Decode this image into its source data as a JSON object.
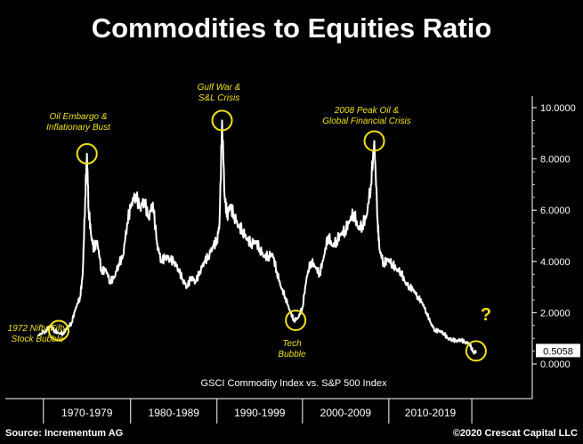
{
  "header": {
    "title": "Commodities to Equities Ratio"
  },
  "footer": {
    "source": "Source: Incrementum AG",
    "credit": "©2020 Crescat Capital LLC"
  },
  "colors": {
    "background": "#000000",
    "line": "#ffffff",
    "annotation": "#f2e21a"
  },
  "chart_data": {
    "type": "line",
    "title": "Commodities to Equities Ratio",
    "subtitle": "GSCI Commodity Index vs. S&P 500 Index",
    "y_ticks": [
      "10.0000",
      "8.0000",
      "6.0000",
      "4.0000",
      "2.0000",
      "0.0000"
    ],
    "ylim": [
      0,
      10
    ],
    "x_categories": [
      "1970-1979",
      "1980-1989",
      "1990-1999",
      "2000-2009",
      "2010-2019"
    ],
    "xlim": [
      1969,
      2020
    ],
    "current_value_label": "0.5058",
    "series": [
      {
        "values": [
          [
            1969.0,
            1.1
          ],
          [
            1970.0,
            1.3
          ],
          [
            1970.5,
            1.5
          ],
          [
            1971.0,
            1.3
          ],
          [
            1971.5,
            1.2
          ],
          [
            1972.0,
            1.2
          ],
          [
            1972.5,
            1.4
          ],
          [
            1973.0,
            1.6
          ],
          [
            1973.5,
            2.2
          ],
          [
            1974.0,
            2.6
          ],
          [
            1974.3,
            3.5
          ],
          [
            1974.6,
            6.5
          ],
          [
            1974.8,
            8.2
          ],
          [
            1975.0,
            6.0
          ],
          [
            1975.3,
            5.0
          ],
          [
            1975.6,
            4.5
          ],
          [
            1976.0,
            4.8
          ],
          [
            1976.5,
            3.6
          ],
          [
            1977.0,
            3.7
          ],
          [
            1977.5,
            3.2
          ],
          [
            1978.0,
            3.4
          ],
          [
            1978.5,
            3.9
          ],
          [
            1979.0,
            4.2
          ],
          [
            1979.5,
            5.5
          ],
          [
            1980.0,
            6.3
          ],
          [
            1980.5,
            6.6
          ],
          [
            1981.0,
            6.1
          ],
          [
            1981.5,
            6.4
          ],
          [
            1982.0,
            5.7
          ],
          [
            1982.5,
            6.3
          ],
          [
            1983.0,
            4.7
          ],
          [
            1983.5,
            4.0
          ],
          [
            1984.0,
            4.2
          ],
          [
            1984.5,
            4.1
          ],
          [
            1985.0,
            4.0
          ],
          [
            1985.5,
            3.7
          ],
          [
            1986.0,
            3.3
          ],
          [
            1986.5,
            3.0
          ],
          [
            1987.0,
            3.4
          ],
          [
            1987.5,
            3.2
          ],
          [
            1988.0,
            3.6
          ],
          [
            1988.5,
            4.0
          ],
          [
            1989.0,
            4.2
          ],
          [
            1989.5,
            4.6
          ],
          [
            1990.0,
            4.8
          ],
          [
            1990.3,
            5.5
          ],
          [
            1990.6,
            9.5
          ],
          [
            1990.9,
            6.5
          ],
          [
            1991.2,
            5.8
          ],
          [
            1991.5,
            6.2
          ],
          [
            1992.0,
            5.8
          ],
          [
            1992.5,
            5.4
          ],
          [
            1993.0,
            5.2
          ],
          [
            1993.5,
            4.9
          ],
          [
            1994.0,
            4.7
          ],
          [
            1994.5,
            4.8
          ],
          [
            1995.0,
            4.5
          ],
          [
            1995.5,
            4.2
          ],
          [
            1996.0,
            4.2
          ],
          [
            1996.5,
            4.3
          ],
          [
            1997.0,
            3.6
          ],
          [
            1997.5,
            3.0
          ],
          [
            1998.0,
            2.6
          ],
          [
            1998.5,
            2.1
          ],
          [
            1999.0,
            1.7
          ],
          [
            1999.5,
            1.8
          ],
          [
            2000.0,
            2.2
          ],
          [
            2000.5,
            3.4
          ],
          [
            2001.0,
            4.0
          ],
          [
            2001.5,
            3.8
          ],
          [
            2002.0,
            3.5
          ],
          [
            2002.5,
            4.2
          ],
          [
            2003.0,
            5.0
          ],
          [
            2003.5,
            4.6
          ],
          [
            2004.0,
            4.8
          ],
          [
            2004.5,
            5.1
          ],
          [
            2005.0,
            5.2
          ],
          [
            2005.5,
            5.6
          ],
          [
            2006.0,
            5.9
          ],
          [
            2006.5,
            5.3
          ],
          [
            2007.0,
            5.4
          ],
          [
            2007.5,
            5.8
          ],
          [
            2008.0,
            7.0
          ],
          [
            2008.4,
            8.7
          ],
          [
            2008.8,
            5.5
          ],
          [
            2009.0,
            4.5
          ],
          [
            2009.5,
            3.9
          ],
          [
            2010.0,
            4.1
          ],
          [
            2010.5,
            3.9
          ],
          [
            2011.0,
            3.7
          ],
          [
            2011.5,
            3.6
          ],
          [
            2012.0,
            3.2
          ],
          [
            2012.5,
            3.0
          ],
          [
            2013.0,
            2.9
          ],
          [
            2013.5,
            2.6
          ],
          [
            2014.0,
            2.4
          ],
          [
            2014.5,
            2.0
          ],
          [
            2015.0,
            1.6
          ],
          [
            2015.5,
            1.3
          ],
          [
            2016.0,
            1.3
          ],
          [
            2016.5,
            1.2
          ],
          [
            2017.0,
            1.0
          ],
          [
            2017.5,
            0.95
          ],
          [
            2018.0,
            0.9
          ],
          [
            2018.5,
            0.95
          ],
          [
            2019.0,
            0.85
          ],
          [
            2019.5,
            0.8
          ],
          [
            2020.0,
            0.45
          ],
          [
            2020.3,
            0.5058
          ]
        ]
      }
    ],
    "annotations": [
      {
        "lines": [
          "Oil Embargo &",
          "Inflationary Bust"
        ],
        "x": 1974.8,
        "y": 8.2
      },
      {
        "lines": [
          "Gulf War &",
          "S&L Crisis"
        ],
        "x": 1990.6,
        "y": 9.5
      },
      {
        "lines": [
          "2008 Peak Oil &",
          "Global Financial Crisis"
        ],
        "x": 2008.4,
        "y": 8.7
      },
      {
        "lines": [
          "1972 Nifty Fifty",
          "Stock Bubble"
        ],
        "x": 1971.5,
        "y": 1.3
      },
      {
        "lines": [
          "Tech",
          "Bubble"
        ],
        "x": 1999.2,
        "y": 1.7
      },
      {
        "lines": [
          "?"
        ],
        "x": 2020.3,
        "y": 0.5058
      }
    ]
  }
}
